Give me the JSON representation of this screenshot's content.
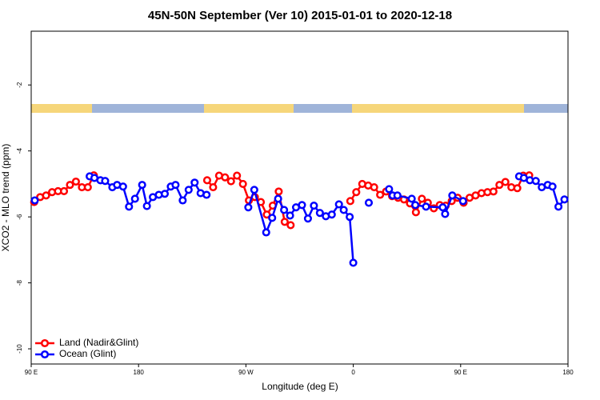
{
  "chart_data": {
    "type": "line",
    "title": "45N-50N September (Ver 10)   2015-01-01 to 2020-12-18",
    "xlabel": "Longitude (deg E)",
    "ylabel": "XCO2 - MLO trend (ppm)",
    "xlim": [
      90,
      540
    ],
    "ylim": [
      -10.46,
      -0.37
    ],
    "xticks": [
      {
        "value": 90,
        "label": "90 E"
      },
      180,
      {
        "value": 270,
        "label": "90 W"
      },
      {
        "value": 360,
        "label": "0"
      },
      {
        "value": 450,
        "label": "90 E"
      },
      {
        "value": 540,
        "label": "180"
      }
    ],
    "yticks": [
      -2,
      -4,
      -6,
      -8,
      -10
    ],
    "grid": false,
    "legend": "bottom-left",
    "series": [
      {
        "name": "Land (Nadir&Glint)",
        "color": "#ff0000",
        "x": [
          92.5,
          97.5,
          102.5,
          107.5,
          112.5,
          117.5,
          122.5,
          127.5,
          132.5,
          137.5,
          142.5,
          null,
          237.5,
          242.5,
          247.5,
          252.5,
          257.5,
          262.5,
          267.5,
          272.5,
          277.5,
          282.5,
          287.5,
          292.5,
          297.5,
          302.5,
          307.5,
          null,
          357.5,
          362.5,
          367.5,
          372.5,
          377.5,
          382.5,
          387.5,
          392.5,
          397.5,
          402.5,
          407.5,
          412.5,
          417.5,
          422.5,
          427.5,
          432.5,
          437.5,
          442.5,
          447.5,
          452.5,
          457.5,
          462.5,
          467.5,
          472.5,
          477.5,
          482.5,
          487.5,
          492.5,
          497.5,
          502.5,
          507.5
        ],
        "values": [
          -5.55,
          -5.4,
          -5.35,
          -5.25,
          -5.22,
          -5.22,
          -5.03,
          -4.93,
          -5.1,
          -5.1,
          -4.74,
          null,
          -4.89,
          -5.1,
          -4.75,
          -4.8,
          -4.92,
          -4.75,
          -5.0,
          -5.5,
          -5.4,
          -5.55,
          -5.93,
          -5.66,
          -5.23,
          -6.15,
          -6.25,
          null,
          -5.52,
          -5.25,
          -5.0,
          -5.05,
          -5.1,
          -5.33,
          -5.23,
          -5.37,
          -5.42,
          -5.47,
          -5.59,
          -5.86,
          -5.45,
          -5.57,
          -5.74,
          -5.64,
          -5.66,
          -5.52,
          -5.42,
          -5.57,
          -5.42,
          -5.35,
          -5.28,
          -5.25,
          -5.23,
          -5.03,
          -4.94,
          -5.1,
          -5.13,
          -4.75,
          -4.74
        ]
      },
      {
        "name": "Ocean (Glint)",
        "color": "#0000ff",
        "x": [
          93,
          null,
          139,
          143,
          148,
          152,
          158,
          162,
          167,
          172,
          177,
          183,
          187,
          192,
          197,
          202,
          207,
          211,
          217,
          222,
          227,
          232,
          237,
          null,
          272,
          277,
          287,
          292,
          297,
          302,
          307,
          312,
          317,
          322,
          327,
          332,
          337,
          342,
          348,
          352,
          357,
          360,
          null,
          373,
          null,
          390,
          393,
          397,
          409,
          412,
          421,
          435,
          437,
          443,
          452,
          null,
          499,
          503,
          508,
          513,
          518,
          523,
          527,
          532,
          537
        ],
        "values": [
          -5.5,
          null,
          -4.77,
          -4.82,
          -4.89,
          -4.91,
          -5.1,
          -5.03,
          -5.08,
          -5.69,
          -5.45,
          -5.03,
          -5.67,
          -5.4,
          -5.33,
          -5.3,
          -5.08,
          -5.03,
          -5.5,
          -5.18,
          -4.96,
          -5.28,
          -5.33,
          null,
          -5.71,
          -5.18,
          -6.47,
          -6.03,
          -5.45,
          -5.79,
          -5.96,
          -5.71,
          -5.64,
          -6.05,
          -5.66,
          -5.88,
          -5.98,
          -5.93,
          -5.62,
          -5.79,
          -6.0,
          -7.39,
          null,
          -5.57,
          null,
          -5.16,
          -5.35,
          -5.35,
          -5.45,
          -5.64,
          -5.69,
          -5.71,
          -5.91,
          -5.35,
          -5.52,
          null,
          -4.77,
          -4.82,
          -4.89,
          -4.91,
          -5.1,
          -5.03,
          -5.08,
          -5.69,
          -5.47
        ]
      }
    ]
  }
}
